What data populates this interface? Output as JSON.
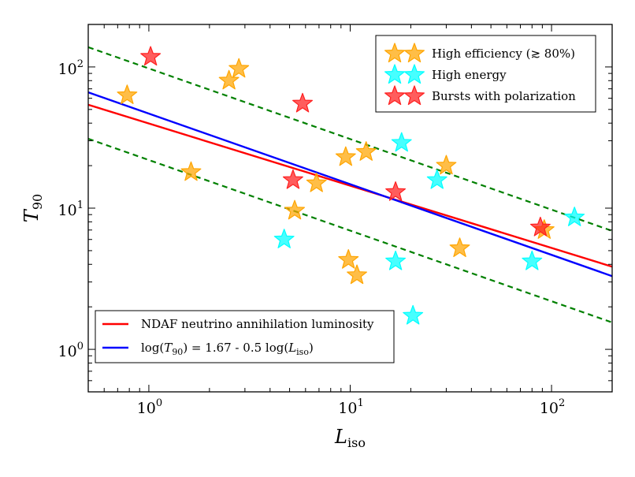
{
  "chart_data": {
    "type": "scatter",
    "xscale": "log",
    "yscale": "log",
    "xlim": [
      0.5,
      200
    ],
    "ylim": [
      0.5,
      200
    ],
    "xlabel": {
      "main": "L",
      "sub": "iso"
    },
    "ylabel": {
      "main": "T",
      "sub": "90"
    },
    "x_major_ticks": [
      {
        "value": 1,
        "base": "10",
        "exp": "0"
      },
      {
        "value": 10,
        "base": "10",
        "exp": "1"
      },
      {
        "value": 100,
        "base": "10",
        "exp": "2"
      }
    ],
    "y_major_ticks": [
      {
        "value": 1,
        "base": "10",
        "exp": "0"
      },
      {
        "value": 10,
        "base": "10",
        "exp": "1"
      },
      {
        "value": 100,
        "base": "10",
        "exp": "2"
      }
    ],
    "scatter_series": [
      {
        "name": "High efficiency (≳ 80%)",
        "color": "#FFA500",
        "points": [
          [
            0.78,
            63
          ],
          [
            1.62,
            18
          ],
          [
            2.5,
            80
          ],
          [
            2.8,
            97
          ],
          [
            5.3,
            9.6
          ],
          [
            6.8,
            15
          ],
          [
            9.5,
            23
          ],
          [
            9.8,
            4.3
          ],
          [
            10.8,
            3.35
          ],
          [
            12,
            25
          ],
          [
            30,
            20
          ],
          [
            35,
            5.2
          ],
          [
            92,
            7.0
          ]
        ]
      },
      {
        "name": "High energy",
        "color": "#00FFFF",
        "points": [
          [
            4.7,
            6.0
          ],
          [
            16.8,
            4.2
          ],
          [
            18,
            29
          ],
          [
            20.5,
            1.73
          ],
          [
            27,
            15.8
          ],
          [
            80,
            4.2
          ],
          [
            130,
            8.6
          ]
        ]
      },
      {
        "name": "Bursts with polarization",
        "color": "#FF1F1F",
        "points": [
          [
            1.02,
            118
          ],
          [
            5.2,
            15.8
          ],
          [
            5.8,
            55
          ],
          [
            16.8,
            13
          ],
          [
            88,
            7.3
          ]
        ]
      }
    ],
    "line_series": [
      {
        "name": "NDAF neutrino annihilation luminosity",
        "color": "#FF0000",
        "style": "solid",
        "points": [
          [
            0.5,
            54
          ],
          [
            200,
            3.85
          ]
        ]
      },
      {
        "name": "log(T90) = 1.67 - 0.5 log(Liso)",
        "color": "#0000FF",
        "style": "solid",
        "points": [
          [
            0.5,
            66.1
          ],
          [
            200,
            3.3
          ]
        ]
      },
      {
        "name": "upper bound",
        "color": "#008000",
        "style": "dashed",
        "points": [
          [
            0.5,
            138
          ],
          [
            200,
            6.9
          ]
        ]
      },
      {
        "name": "lower bound",
        "color": "#008000",
        "style": "dashed",
        "points": [
          [
            0.5,
            31
          ],
          [
            200,
            1.55
          ]
        ]
      }
    ],
    "legend_scatter": {
      "placement": "top-right",
      "entries": [
        {
          "label": "High efficiency (≳ 80%)",
          "color": "#FFA500"
        },
        {
          "label": "High energy",
          "color": "#00FFFF"
        },
        {
          "label": "Bursts with polarization",
          "color": "#FF1F1F"
        }
      ]
    },
    "legend_lines": {
      "placement": "bottom-left",
      "entries": [
        {
          "color": "#FF0000",
          "parts": [
            {
              "t": "NDAF neutrino annihilation luminosity"
            }
          ]
        },
        {
          "color": "#0000FF",
          "parts": [
            {
              "t": "log("
            },
            {
              "t": "T",
              "i": true
            },
            {
              "t": "90",
              "sub": true
            },
            {
              "t": ") = 1.67 - 0.5 log("
            },
            {
              "t": "L",
              "i": true
            },
            {
              "t": "iso",
              "sub": true
            },
            {
              "t": ")"
            }
          ]
        }
      ]
    }
  }
}
